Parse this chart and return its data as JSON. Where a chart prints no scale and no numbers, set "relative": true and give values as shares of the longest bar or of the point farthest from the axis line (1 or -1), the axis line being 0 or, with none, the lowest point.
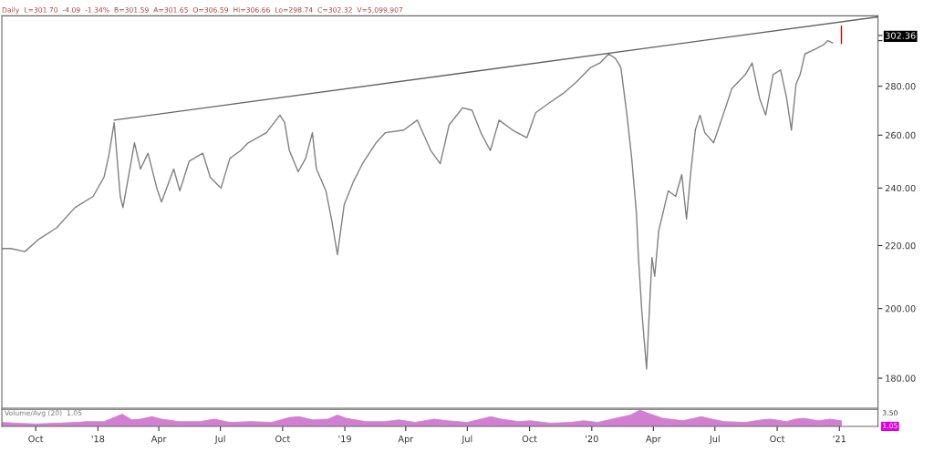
{
  "chart_data": [
    {
      "type": "line",
      "subtitle": "Daily  L=301.70  -4.09  -1.34%  B=301.59  A=301.65  O=306.59  Hi=306.66  Lo=298.74  C=302.32  V=5,099,907",
      "log": "y",
      "grid": false,
      "legend": false,
      "tick_labels": "y",
      "xlim": [
        "2017-08-12",
        "2021-02-27"
      ],
      "ylim": [
        172,
        311.5
      ],
      "yticks": [
        {
          "value": 180,
          "label": "180.00"
        },
        {
          "value": 200,
          "label": "200.00"
        },
        {
          "value": 220,
          "label": "220.00"
        },
        {
          "value": 240,
          "label": "240.00"
        },
        {
          "value": 260,
          "label": "260.00"
        },
        {
          "value": 280,
          "label": "280.00"
        },
        {
          "value": 300,
          "label": null
        },
        {
          "value": 302.36,
          "label": "302.36"
        }
      ],
      "series": [
        {
          "color": "#808080",
          "x": [
            "2017-08-12",
            "2017-08-25",
            "2017-09-15",
            "2017-10-05",
            "2017-11-01",
            "2017-11-28",
            "2017-12-25",
            "2018-01-10",
            "2018-01-17",
            "2018-01-25",
            "2018-02-03",
            "2018-02-07",
            "2018-02-24",
            "2018-03-05",
            "2018-03-16",
            "2018-03-29",
            "2018-04-05",
            "2018-04-23",
            "2018-05-02",
            "2018-05-16",
            "2018-06-05",
            "2018-06-16",
            "2018-07-02",
            "2018-07-15",
            "2018-07-31",
            "2018-08-11",
            "2018-09-07",
            "2018-09-27",
            "2018-10-04",
            "2018-10-11",
            "2018-10-24",
            "2018-11-04",
            "2018-11-14",
            "2018-11-20",
            "2018-12-04",
            "2018-12-13",
            "2018-12-21",
            "2018-12-31",
            "2019-01-13",
            "2019-01-27",
            "2019-02-16",
            "2019-03-02",
            "2019-03-29",
            "2019-04-18",
            "2019-05-08",
            "2019-05-22",
            "2019-06-04",
            "2019-06-24",
            "2019-07-08",
            "2019-07-21",
            "2019-08-04",
            "2019-08-17",
            "2019-09-06",
            "2019-09-27",
            "2019-10-10",
            "2019-10-30",
            "2019-11-20",
            "2019-12-10",
            "2019-12-30",
            "2020-01-13",
            "2020-01-26",
            "2020-02-05",
            "2020-02-13",
            "2020-02-22",
            "2020-02-29",
            "2020-03-07",
            "2020-03-10",
            "2020-03-15",
            "2020-03-22",
            "2020-03-26",
            "2020-03-30",
            "2020-04-03",
            "2020-04-09",
            "2020-04-23",
            "2020-05-04",
            "2020-05-13",
            "2020-05-20",
            "2020-05-26",
            "2020-06-02",
            "2020-06-09",
            "2020-06-16",
            "2020-06-29",
            "2020-07-13",
            "2020-07-26",
            "2020-08-15",
            "2020-08-25",
            "2020-09-05",
            "2020-09-14",
            "2020-09-25",
            "2020-10-06",
            "2020-10-15",
            "2020-10-22",
            "2020-10-29",
            "2020-11-04",
            "2020-11-11",
            "2020-11-25",
            "2020-12-08",
            "2020-12-15",
            "2020-12-22"
          ],
          "values": [
            219,
            219,
            218,
            222,
            226,
            233,
            237,
            244,
            252,
            265,
            237,
            233,
            257,
            247,
            253,
            240,
            235,
            247,
            239,
            250,
            253,
            244,
            240,
            251,
            254,
            257,
            261,
            268,
            265,
            254,
            246,
            251,
            261,
            247,
            239,
            228,
            217,
            234,
            242,
            249,
            257,
            261,
            262,
            266,
            254,
            249,
            264,
            271,
            270,
            261,
            254,
            266,
            262,
            259,
            269,
            273,
            277,
            282,
            288,
            290,
            294,
            292,
            288,
            268,
            251,
            231,
            216,
            199,
            182.5,
            199,
            216,
            210,
            225,
            239,
            237,
            245,
            229,
            245,
            262,
            268,
            261,
            257,
            268,
            279,
            285,
            290,
            275,
            268,
            285,
            287,
            275,
            262,
            281,
            285,
            294,
            296,
            298,
            300,
            299
          ]
        },
        {
          "color": "#d00000",
          "x": [
            "2021-01-04",
            "2021-01-04"
          ],
          "values": [
            298.74,
            306.66
          ]
        },
        {
          "color": "#606060",
          "x": [
            "2018-01-25",
            "2021-02-27"
          ],
          "values": [
            266,
            311
          ]
        }
      ]
    },
    {
      "type": "area",
      "title": "Volume/Avg (20)  1.05",
      "relative": true,
      "tick_labels": "x",
      "grid": false,
      "legend": false,
      "xlim": [
        "2017-08-12",
        "2021-02-27"
      ],
      "xticks": [
        {
          "value": "2017-10-01",
          "label": "Oct"
        },
        {
          "value": "2018-01-01",
          "label": "'18"
        },
        {
          "value": "2018-04-01",
          "label": "Apr"
        },
        {
          "value": "2018-07-01",
          "label": "Jul"
        },
        {
          "value": "2018-10-01",
          "label": "Oct"
        },
        {
          "value": "2019-01-01",
          "label": "'19"
        },
        {
          "value": "2019-04-01",
          "label": "Apr"
        },
        {
          "value": "2019-07-01",
          "label": "Jul"
        },
        {
          "value": "2019-10-01",
          "label": "Oct"
        },
        {
          "value": "2020-01-01",
          "label": "'20"
        },
        {
          "value": "2020-04-01",
          "label": "Apr"
        },
        {
          "value": "2020-07-01",
          "label": "Jul"
        },
        {
          "value": "2020-10-01",
          "label": "Oct"
        },
        {
          "value": "2021-01-01",
          "label": "'21"
        }
      ],
      "annotations": [
        "3.50",
        "1.05"
      ],
      "series": [
        {
          "color": "#d27fd2",
          "x": [
            "2017-08-12",
            "2017-09-01",
            "2017-10-01",
            "2017-11-01",
            "2017-12-01",
            "2017-12-15",
            "2018-01-10",
            "2018-02-06",
            "2018-02-20",
            "2018-03-05",
            "2018-03-22",
            "2018-04-05",
            "2018-05-01",
            "2018-06-01",
            "2018-06-22",
            "2018-07-15",
            "2018-08-15",
            "2018-09-15",
            "2018-10-11",
            "2018-10-25",
            "2018-11-15",
            "2018-12-07",
            "2018-12-21",
            "2019-01-03",
            "2019-02-01",
            "2019-03-01",
            "2019-03-22",
            "2019-04-15",
            "2019-05-13",
            "2019-06-01",
            "2019-07-01",
            "2019-08-05",
            "2019-08-20",
            "2019-09-15",
            "2019-10-02",
            "2019-11-01",
            "2019-12-01",
            "2019-12-20",
            "2020-01-10",
            "2020-01-31",
            "2020-02-27",
            "2020-03-12",
            "2020-03-25",
            "2020-04-15",
            "2020-05-15",
            "2020-06-11",
            "2020-06-26",
            "2020-07-15",
            "2020-08-15",
            "2020-09-08",
            "2020-09-21",
            "2020-10-15",
            "2020-10-28",
            "2020-11-09",
            "2020-12-01",
            "2020-12-18",
            "2021-01-04"
          ],
          "values": [
            0.25,
            0.2,
            0.15,
            0.2,
            0.25,
            0.3,
            0.3,
            0.75,
            0.4,
            0.45,
            0.6,
            0.45,
            0.3,
            0.3,
            0.45,
            0.25,
            0.3,
            0.25,
            0.55,
            0.6,
            0.4,
            0.45,
            0.7,
            0.5,
            0.3,
            0.3,
            0.4,
            0.25,
            0.45,
            0.35,
            0.25,
            0.6,
            0.45,
            0.3,
            0.35,
            0.2,
            0.25,
            0.35,
            0.25,
            0.45,
            0.7,
            1,
            0.8,
            0.5,
            0.35,
            0.6,
            0.45,
            0.3,
            0.25,
            0.4,
            0.45,
            0.3,
            0.45,
            0.5,
            0.35,
            0.45,
            0.35
          ]
        }
      ]
    }
  ]
}
